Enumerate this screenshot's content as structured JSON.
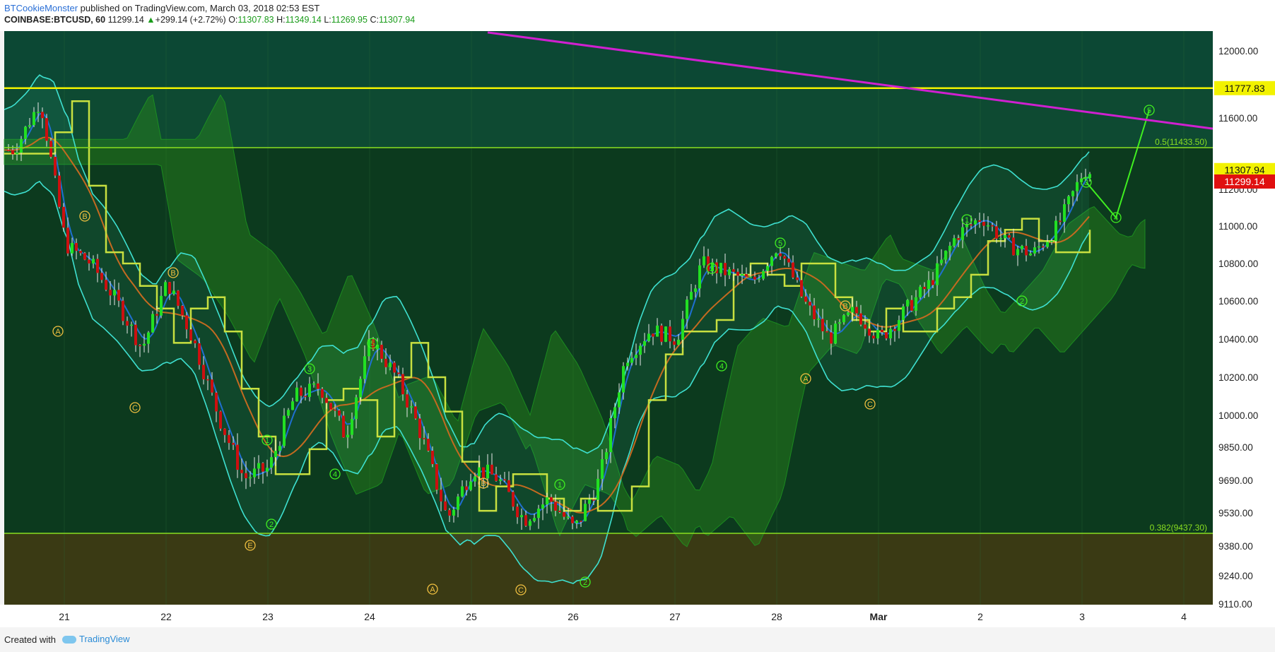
{
  "header": {
    "author": "BTCookieMonster",
    "published_text": "published on TradingView.com, March 03, 2018 02:53 EST",
    "symbol": "COINBASE:BTCUSD, 60",
    "last": "11299.14",
    "change": "+299.14 (+2.72%)",
    "o_label": "O:",
    "o_value": "11307.83",
    "h_label": "H:",
    "h_value": "11349.14",
    "l_label": "L:",
    "l_value": "11269.95",
    "c_label": "C:",
    "c_value": "11307.94"
  },
  "footer": {
    "created_with": "Created with",
    "brand": "TradingView"
  },
  "colors": {
    "background": "#0c3a1e",
    "zone_upper": "#0e4a32",
    "zone_lower": "#3a3a14",
    "candle_up": "#22e022",
    "candle_down": "#cc1010",
    "resistance": "#f2f200",
    "fib": "#8adf20",
    "trendline": "#d020d0",
    "bollinger": "#3ee0d0",
    "tenkan": "#1f6fd0",
    "kijun": "#c8e040",
    "ma": "#c46a20",
    "wave_label": "#f0c040",
    "wave_green": "#40f020"
  },
  "chart_data": {
    "type": "candlestick",
    "timeframe": "60",
    "ylim": [
      9100,
      12100
    ],
    "y_ticks": [
      "12000.00",
      "11600.00",
      "11200.00",
      "11000.00",
      "10800.00",
      "10600.00",
      "10400.00",
      "10200.00",
      "10000.00",
      "9850.00",
      "9690.00",
      "9530.00",
      "9380.00",
      "9240.00",
      "9110.00"
    ],
    "x_ticks": [
      "21",
      "22",
      "23",
      "24",
      "25",
      "26",
      "27",
      "28",
      "Mar",
      "2",
      "3",
      "4"
    ],
    "price_labels": {
      "resistance": "11777.83",
      "close": "11307.94",
      "last": "11299.14"
    },
    "fib_levels": [
      {
        "label": "0.5(11433.50)",
        "value": 11433.5
      },
      {
        "label": "0.382(9437.30)",
        "value": 9437.3
      }
    ],
    "resistance_line": 11777.83,
    "trendline": [
      {
        "x": "22.3",
        "y": 12110
      },
      {
        "x": "4.8",
        "y": 11540
      }
    ],
    "wave_labels": [
      "A",
      "B",
      "C",
      "B",
      "E",
      "1",
      "2",
      "3",
      "4",
      "5",
      "A",
      "B",
      "C",
      "1",
      "2",
      "A",
      "B",
      "C",
      "3",
      "4",
      "5",
      "A",
      "B",
      "C",
      "1",
      "2",
      "3",
      "4",
      "5"
    ],
    "close_path": [
      [
        "20.5",
        11420
      ],
      [
        "20.75",
        11700
      ],
      [
        "21.0",
        10900
      ],
      [
        "21.25",
        10800
      ],
      [
        "21.5",
        10600
      ],
      [
        "21.75",
        10350
      ],
      [
        "22.0",
        10700
      ],
      [
        "22.25",
        10400
      ],
      [
        "22.5",
        10000
      ],
      [
        "22.75",
        9700
      ],
      [
        "23.0",
        9750
      ],
      [
        "23.25",
        10100
      ],
      [
        "23.5",
        10150
      ],
      [
        "23.75",
        9900
      ],
      [
        "24.0",
        10400
      ],
      [
        "24.25",
        10200
      ],
      [
        "24.5",
        9900
      ],
      [
        "24.75",
        9500
      ],
      [
        "25.0",
        9750
      ],
      [
        "25.25",
        9700
      ],
      [
        "25.5",
        9500
      ],
      [
        "25.75",
        9600
      ],
      [
        "26.0",
        9450
      ],
      [
        "26.25",
        9700
      ],
      [
        "26.5",
        10300
      ],
      [
        "26.75",
        10450
      ],
      [
        "27.0",
        10400
      ],
      [
        "27.25",
        10800
      ],
      [
        "27.5",
        10750
      ],
      [
        "27.75",
        10700
      ],
      [
        "28.0",
        10900
      ],
      [
        "28.25",
        10600
      ],
      [
        "28.5",
        10400
      ],
      [
        "28.75",
        10550
      ],
      [
        "Mar.0",
        10400
      ],
      [
        "Mar.25",
        10550
      ],
      [
        "Mar.5",
        10700
      ],
      [
        "Mar.75",
        10950
      ],
      [
        "2.0",
        11050
      ],
      [
        "2.25",
        10900
      ],
      [
        "2.5",
        10850
      ],
      [
        "2.75",
        11000
      ],
      [
        "3.0",
        11299
      ]
    ]
  }
}
